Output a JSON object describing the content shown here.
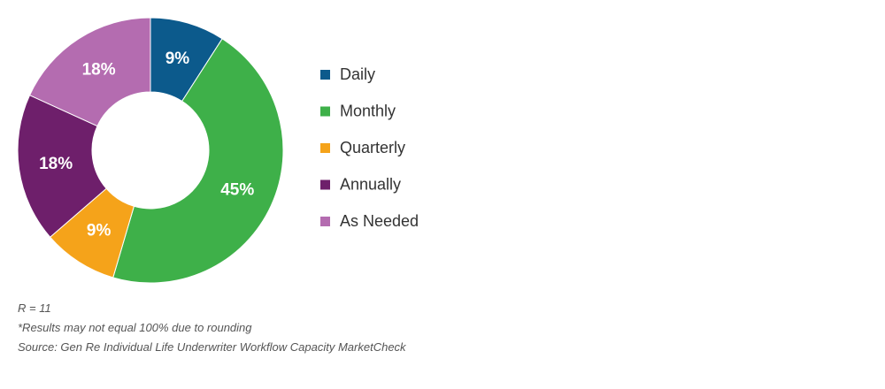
{
  "chart_data": {
    "type": "pie",
    "donut": true,
    "title": "",
    "categories": [
      "Daily",
      "Monthly",
      "Quarterly",
      "Annually",
      "As Needed"
    ],
    "values": [
      9,
      45,
      9,
      18,
      18
    ],
    "value_labels": [
      "9%",
      "45%",
      "9%",
      "18%",
      "18%"
    ],
    "colors": [
      "#0c5a8c",
      "#3eb049",
      "#f5a31a",
      "#6e1f6b",
      "#b46cb0"
    ],
    "legend": {
      "placement": "right",
      "entries": [
        "Daily",
        "Monthly",
        "Quarterly",
        "Annually",
        "As Needed"
      ]
    }
  },
  "notes": {
    "respondents": "R = 11",
    "rounding": "*Results may not equal 100% due to rounding",
    "source": "Source: Gen Re Individual Life Underwriter Workflow Capacity MarketCheck"
  }
}
